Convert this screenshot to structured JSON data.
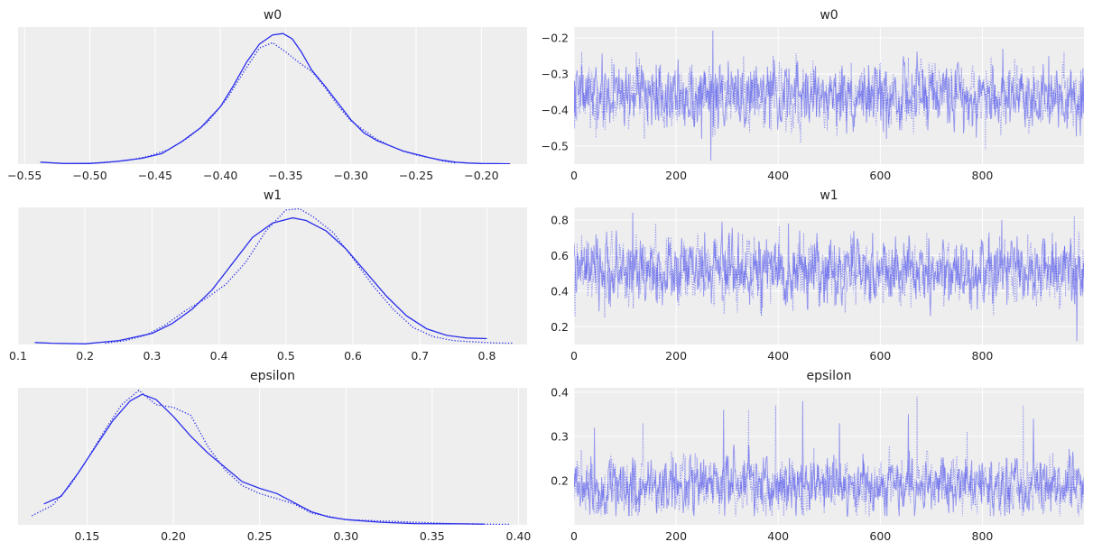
{
  "chart_data": [
    {
      "type": "line",
      "kind": "density",
      "title": "w0",
      "xlim": [
        -0.555,
        -0.165
      ],
      "ylim": [
        0,
        1.05
      ],
      "yticks_visible": false,
      "grid": "x",
      "xticks": [
        -0.55,
        -0.5,
        -0.45,
        -0.4,
        -0.35,
        -0.3,
        -0.25,
        -0.2
      ],
      "xtick_labels": [
        "−0.55",
        "−0.50",
        "−0.45",
        "−0.40",
        "−0.35",
        "−0.30",
        "−0.25",
        "−0.20"
      ],
      "color": "#2a2eec",
      "series": [
        {
          "style": "solid",
          "x": [
            -0.538,
            -0.52,
            -0.5,
            -0.48,
            -0.46,
            -0.445,
            -0.43,
            -0.415,
            -0.4,
            -0.39,
            -0.38,
            -0.37,
            -0.36,
            -0.352,
            -0.345,
            -0.338,
            -0.33,
            -0.32,
            -0.31,
            -0.3,
            -0.29,
            -0.28,
            -0.27,
            -0.26,
            -0.25,
            -0.24,
            -0.23,
            -0.22,
            -0.21,
            -0.2,
            -0.19,
            -0.178
          ],
          "y": [
            0.015,
            0.005,
            0.005,
            0.02,
            0.045,
            0.08,
            0.17,
            0.28,
            0.44,
            0.6,
            0.78,
            0.92,
            0.99,
            1.0,
            0.96,
            0.86,
            0.72,
            0.6,
            0.47,
            0.34,
            0.24,
            0.18,
            0.14,
            0.1,
            0.075,
            0.05,
            0.03,
            0.015,
            0.008,
            0.005,
            0.004,
            0.003
          ]
        },
        {
          "style": "dotted",
          "x": [
            -0.51,
            -0.49,
            -0.47,
            -0.455,
            -0.44,
            -0.425,
            -0.41,
            -0.395,
            -0.38,
            -0.37,
            -0.36,
            -0.35,
            -0.34,
            -0.33,
            -0.32,
            -0.31,
            -0.3,
            -0.29,
            -0.28,
            -0.27,
            -0.26,
            -0.25,
            -0.24,
            -0.23,
            -0.22
          ],
          "y": [
            0.005,
            0.01,
            0.03,
            0.06,
            0.11,
            0.2,
            0.32,
            0.5,
            0.74,
            0.89,
            0.93,
            0.86,
            0.78,
            0.71,
            0.59,
            0.45,
            0.33,
            0.26,
            0.19,
            0.14,
            0.1,
            0.07,
            0.05,
            0.025,
            0.01
          ]
        }
      ]
    },
    {
      "type": "line",
      "kind": "trace",
      "title": "w0",
      "xlim": [
        0,
        999
      ],
      "ylim": [
        -0.55,
        -0.17
      ],
      "xticks": [
        0,
        200,
        400,
        600,
        800
      ],
      "xtick_labels": [
        "0",
        "200",
        "400",
        "600",
        "800"
      ],
      "yticks": [
        -0.5,
        -0.4,
        -0.3,
        -0.2
      ],
      "ytick_labels": [
        "−0.5",
        "−0.4",
        "−0.3",
        "−0.2"
      ],
      "grid": "both",
      "color": "#2a2eec",
      "trace_center": -0.36,
      "trace_spread": 0.04,
      "trace_min": -0.54,
      "trace_max": -0.18,
      "draws": 1000,
      "series": [
        {
          "style": "solid",
          "spikes": [
            [
              272,
              -0.18
            ],
            [
              268,
              -0.54
            ],
            [
              250,
              -0.48
            ],
            [
              612,
              -0.48
            ],
            [
              840,
              -0.23
            ],
            [
              930,
              -0.25
            ]
          ]
        },
        {
          "style": "dotted",
          "spikes": [
            [
              806,
              -0.51
            ],
            [
              122,
              -0.24
            ],
            [
              960,
              -0.24
            ],
            [
              390,
              -0.25
            ]
          ]
        }
      ]
    },
    {
      "type": "line",
      "kind": "density",
      "title": "w1",
      "xlim": [
        0.1,
        0.86
      ],
      "ylim": [
        0,
        1.05
      ],
      "yticks_visible": false,
      "grid": "x",
      "xticks": [
        0.1,
        0.2,
        0.3,
        0.4,
        0.5,
        0.6,
        0.7,
        0.8
      ],
      "xtick_labels": [
        "0.1",
        "0.2",
        "0.3",
        "0.4",
        "0.5",
        "0.6",
        "0.7",
        "0.8"
      ],
      "color": "#2a2eec",
      "series": [
        {
          "style": "solid",
          "x": [
            0.125,
            0.15,
            0.2,
            0.25,
            0.3,
            0.33,
            0.36,
            0.39,
            0.42,
            0.45,
            0.48,
            0.51,
            0.53,
            0.56,
            0.59,
            0.62,
            0.65,
            0.68,
            0.71,
            0.74,
            0.77,
            0.8
          ],
          "y": [
            0.015,
            0.01,
            0.005,
            0.03,
            0.085,
            0.16,
            0.27,
            0.42,
            0.62,
            0.82,
            0.93,
            0.97,
            0.95,
            0.87,
            0.73,
            0.55,
            0.37,
            0.22,
            0.12,
            0.07,
            0.05,
            0.045
          ]
        },
        {
          "style": "dotted",
          "x": [
            0.23,
            0.26,
            0.29,
            0.32,
            0.35,
            0.38,
            0.41,
            0.44,
            0.47,
            0.5,
            0.52,
            0.54,
            0.57,
            0.6,
            0.63,
            0.66,
            0.69,
            0.72,
            0.75,
            0.78,
            0.81,
            0.84
          ],
          "y": [
            0.01,
            0.03,
            0.07,
            0.15,
            0.26,
            0.35,
            0.46,
            0.63,
            0.87,
            1.03,
            1.04,
            0.98,
            0.86,
            0.66,
            0.45,
            0.27,
            0.13,
            0.06,
            0.03,
            0.02,
            0.012,
            0.01
          ]
        }
      ]
    },
    {
      "type": "line",
      "kind": "trace",
      "title": "w1",
      "xlim": [
        0,
        999
      ],
      "ylim": [
        0.1,
        0.87
      ],
      "xticks": [
        0,
        200,
        400,
        600,
        800
      ],
      "xtick_labels": [
        "0",
        "200",
        "400",
        "600",
        "800"
      ],
      "yticks": [
        0.2,
        0.4,
        0.6,
        0.8
      ],
      "ytick_labels": [
        "0.2",
        "0.4",
        "0.6",
        "0.8"
      ],
      "grid": "both",
      "color": "#2a2eec",
      "trace_center": 0.51,
      "trace_spread": 0.085,
      "trace_min": 0.12,
      "trace_max": 0.85,
      "draws": 1000,
      "series": [
        {
          "style": "solid",
          "spikes": [
            [
              115,
              0.84
            ],
            [
              290,
              0.79
            ],
            [
              838,
              0.8
            ],
            [
              985,
              0.12
            ],
            [
              420,
              0.78
            ]
          ]
        },
        {
          "style": "dotted",
          "spikes": [
            [
              980,
              0.82
            ],
            [
              60,
              0.25
            ],
            [
              320,
              0.28
            ],
            [
              160,
              0.78
            ]
          ]
        }
      ]
    },
    {
      "type": "line",
      "kind": "density",
      "title": "epsilon",
      "xlim": [
        0.11,
        0.405
      ],
      "ylim": [
        0,
        1.05
      ],
      "yticks_visible": false,
      "grid": "x",
      "xticks": [
        0.15,
        0.2,
        0.25,
        0.3,
        0.35,
        0.4
      ],
      "xtick_labels": [
        "0.15",
        "0.20",
        "0.25",
        "0.30",
        "0.35",
        "0.40"
      ],
      "color": "#2a2eec",
      "series": [
        {
          "style": "solid",
          "x": [
            0.125,
            0.135,
            0.145,
            0.155,
            0.165,
            0.175,
            0.182,
            0.19,
            0.2,
            0.21,
            0.22,
            0.23,
            0.24,
            0.25,
            0.26,
            0.27,
            0.28,
            0.29,
            0.3,
            0.32,
            0.34,
            0.36,
            0.38
          ],
          "y": [
            0.16,
            0.22,
            0.4,
            0.6,
            0.8,
            0.95,
            1.0,
            0.96,
            0.83,
            0.68,
            0.55,
            0.44,
            0.33,
            0.28,
            0.24,
            0.17,
            0.1,
            0.06,
            0.04,
            0.02,
            0.01,
            0.008,
            0.006
          ]
        },
        {
          "style": "dotted",
          "x": [
            0.118,
            0.13,
            0.14,
            0.15,
            0.16,
            0.17,
            0.18,
            0.19,
            0.2,
            0.21,
            0.22,
            0.23,
            0.24,
            0.25,
            0.26,
            0.27,
            0.28,
            0.3,
            0.32,
            0.34,
            0.36,
            0.38,
            0.395
          ],
          "y": [
            0.07,
            0.15,
            0.3,
            0.5,
            0.72,
            0.92,
            1.03,
            0.92,
            0.9,
            0.84,
            0.6,
            0.42,
            0.3,
            0.24,
            0.2,
            0.16,
            0.09,
            0.04,
            0.03,
            0.02,
            0.01,
            0.005,
            0.004
          ]
        }
      ]
    },
    {
      "type": "line",
      "kind": "trace",
      "title": "epsilon",
      "xlim": [
        0,
        999
      ],
      "ylim": [
        0.1,
        0.41
      ],
      "xticks": [
        0,
        200,
        400,
        600,
        800
      ],
      "xtick_labels": [
        "0",
        "200",
        "400",
        "600",
        "800"
      ],
      "yticks": [
        0.2,
        0.3,
        0.4
      ],
      "ytick_labels": [
        "0.2",
        "0.3",
        "0.4"
      ],
      "grid": "both",
      "color": "#2a2eec",
      "trace_center": 0.19,
      "trace_spread": 0.03,
      "trace_min": 0.12,
      "trace_max": 0.4,
      "draws": 1000,
      "series": [
        {
          "style": "solid",
          "spikes": [
            [
              448,
              0.38
            ],
            [
              655,
              0.35
            ],
            [
              293,
              0.36
            ],
            [
              900,
              0.34
            ],
            [
              40,
              0.32
            ],
            [
              520,
              0.33
            ]
          ]
        },
        {
          "style": "dotted",
          "spikes": [
            [
              672,
              0.39
            ],
            [
              342,
              0.36
            ],
            [
              395,
              0.37
            ],
            [
              880,
              0.37
            ],
            [
              135,
              0.33
            ],
            [
              770,
              0.31
            ]
          ]
        }
      ]
    }
  ]
}
